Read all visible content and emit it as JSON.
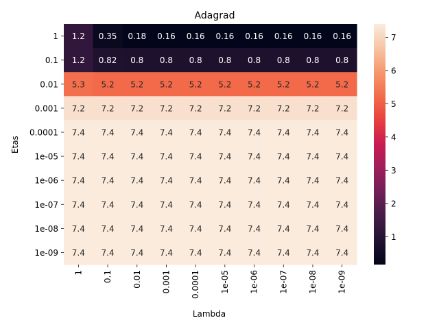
{
  "chart_data": {
    "type": "heatmap",
    "title": "Adagrad",
    "xlabel": "Lambda",
    "ylabel": "Etas",
    "x_categories": [
      "1",
      "0.1",
      "0.01",
      "0.001",
      "0.0001",
      "1e-05",
      "1e-06",
      "1e-07",
      "1e-08",
      "1e-09"
    ],
    "y_categories": [
      "1",
      "0.1",
      "0.01",
      "0.001",
      "0.0001",
      "1e-05",
      "1e-06",
      "1e-07",
      "1e-08",
      "1e-09"
    ],
    "values": [
      [
        1.2,
        0.35,
        0.18,
        0.16,
        0.16,
        0.16,
        0.16,
        0.16,
        0.16,
        0.16
      ],
      [
        1.2,
        0.82,
        0.8,
        0.8,
        0.8,
        0.8,
        0.8,
        0.8,
        0.8,
        0.8
      ],
      [
        5.3,
        5.2,
        5.2,
        5.2,
        5.2,
        5.2,
        5.2,
        5.2,
        5.2,
        5.2
      ],
      [
        7.2,
        7.2,
        7.2,
        7.2,
        7.2,
        7.2,
        7.2,
        7.2,
        7.2,
        7.2
      ],
      [
        7.4,
        7.4,
        7.4,
        7.4,
        7.4,
        7.4,
        7.4,
        7.4,
        7.4,
        7.4
      ],
      [
        7.4,
        7.4,
        7.4,
        7.4,
        7.4,
        7.4,
        7.4,
        7.4,
        7.4,
        7.4
      ],
      [
        7.4,
        7.4,
        7.4,
        7.4,
        7.4,
        7.4,
        7.4,
        7.4,
        7.4,
        7.4
      ],
      [
        7.4,
        7.4,
        7.4,
        7.4,
        7.4,
        7.4,
        7.4,
        7.4,
        7.4,
        7.4
      ],
      [
        7.4,
        7.4,
        7.4,
        7.4,
        7.4,
        7.4,
        7.4,
        7.4,
        7.4,
        7.4
      ],
      [
        7.4,
        7.4,
        7.4,
        7.4,
        7.4,
        7.4,
        7.4,
        7.4,
        7.4,
        7.4
      ]
    ],
    "colorbar": {
      "colormap": "rocket",
      "vmin": 0.16,
      "vmax": 7.4,
      "ticks": [
        1,
        2,
        3,
        4,
        5,
        6,
        7
      ]
    },
    "annotate": true,
    "grid": false
  }
}
